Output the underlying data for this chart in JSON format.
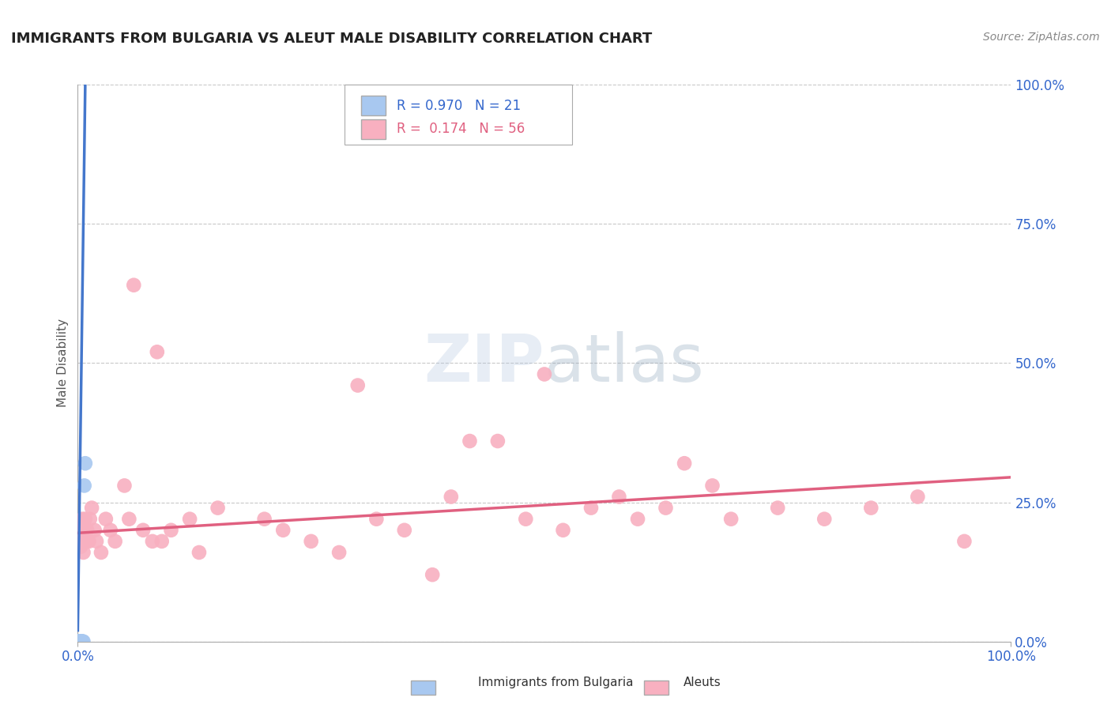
{
  "title": "IMMIGRANTS FROM BULGARIA VS ALEUT MALE DISABILITY CORRELATION CHART",
  "source": "Source: ZipAtlas.com",
  "ylabel": "Male Disability",
  "xlim": [
    0.0,
    1.0
  ],
  "ylim": [
    0.0,
    1.0
  ],
  "xtick_labels": [
    "0.0%",
    "100.0%"
  ],
  "ytick_labels": [
    "0.0%",
    "25.0%",
    "50.0%",
    "75.0%",
    "100.0%"
  ],
  "ytick_positions": [
    0.0,
    0.25,
    0.5,
    0.75,
    1.0
  ],
  "grid_color": "#c8c8c8",
  "background_color": "#ffffff",
  "watermark_text": "ZIPatlas",
  "series": [
    {
      "name": "Immigrants from Bulgaria",
      "R": 0.97,
      "N": 21,
      "color": "#a8c8f0",
      "line_color": "#4477cc",
      "scatter_x": [
        0.0,
        0.001,
        0.001,
        0.001,
        0.002,
        0.002,
        0.002,
        0.002,
        0.003,
        0.003,
        0.003,
        0.003,
        0.003,
        0.004,
        0.004,
        0.004,
        0.005,
        0.005,
        0.006,
        0.007,
        0.008
      ],
      "scatter_y": [
        0.0,
        0.0,
        0.0,
        0.0,
        0.0,
        0.0,
        0.0,
        0.0,
        0.0,
        0.0,
        0.0,
        0.0,
        0.0,
        0.0,
        0.0,
        0.0,
        0.0,
        0.0,
        0.0,
        0.28,
        0.32
      ],
      "trendline_x": [
        0.0,
        0.008
      ],
      "trendline_y": [
        0.02,
        1.0
      ]
    },
    {
      "name": "Aleuts",
      "R": 0.174,
      "N": 56,
      "color": "#f8b0c0",
      "line_color": "#e06080",
      "scatter_x": [
        0.001,
        0.002,
        0.003,
        0.004,
        0.005,
        0.006,
        0.007,
        0.008,
        0.009,
        0.01,
        0.012,
        0.013,
        0.015,
        0.018,
        0.02,
        0.025,
        0.03,
        0.035,
        0.04,
        0.05,
        0.055,
        0.06,
        0.07,
        0.08,
        0.085,
        0.09,
        0.1,
        0.12,
        0.13,
        0.15,
        0.2,
        0.22,
        0.25,
        0.28,
        0.3,
        0.32,
        0.35,
        0.38,
        0.4,
        0.42,
        0.45,
        0.48,
        0.5,
        0.52,
        0.55,
        0.58,
        0.6,
        0.63,
        0.65,
        0.68,
        0.7,
        0.75,
        0.8,
        0.85,
        0.9,
        0.95
      ],
      "scatter_y": [
        0.2,
        0.18,
        0.17,
        0.2,
        0.22,
        0.16,
        0.2,
        0.22,
        0.18,
        0.2,
        0.18,
        0.22,
        0.24,
        0.2,
        0.18,
        0.16,
        0.22,
        0.2,
        0.18,
        0.28,
        0.22,
        0.64,
        0.2,
        0.18,
        0.52,
        0.18,
        0.2,
        0.22,
        0.16,
        0.24,
        0.22,
        0.2,
        0.18,
        0.16,
        0.46,
        0.22,
        0.2,
        0.12,
        0.26,
        0.36,
        0.36,
        0.22,
        0.48,
        0.2,
        0.24,
        0.26,
        0.22,
        0.24,
        0.32,
        0.28,
        0.22,
        0.24,
        0.22,
        0.24,
        0.26,
        0.18
      ],
      "trendline_x": [
        0.0,
        1.0
      ],
      "trendline_y": [
        0.195,
        0.295
      ]
    }
  ]
}
